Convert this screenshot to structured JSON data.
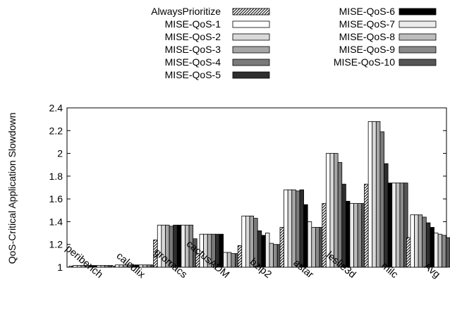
{
  "chart_data": {
    "type": "bar",
    "title": "",
    "xlabel": "",
    "ylabel": "QoS-Critical Application Slowdown",
    "ylim": [
      1,
      2.4
    ],
    "yticks": [
      "1",
      "1.2",
      "1.4",
      "1.6",
      "1.8",
      "2",
      "2.2",
      "2.4"
    ],
    "grid": false,
    "legend_position": "top",
    "categories": [
      "peribench",
      "calculix",
      "gromacs",
      "cactusADM",
      "bzip2",
      "astar",
      "leslie3d",
      "milc",
      "Avg"
    ],
    "series": [
      {
        "name": "AlwaysPrioritize",
        "pattern": "hatch",
        "color": "#ffffff",
        "values": [
          1.01,
          1.01,
          1.24,
          1.12,
          1.19,
          1.35,
          1.56,
          1.73,
          1.26
        ]
      },
      {
        "name": "MISE-QoS-1",
        "color": "#ffffff",
        "values": [
          1.015,
          1.02,
          1.37,
          1.29,
          1.45,
          1.68,
          2.0,
          2.28,
          1.46
        ]
      },
      {
        "name": "MISE-QoS-2",
        "color": "#d9d9d9",
        "values": [
          1.015,
          1.02,
          1.37,
          1.29,
          1.45,
          1.68,
          2.0,
          2.28,
          1.46
        ]
      },
      {
        "name": "MISE-QoS-3",
        "color": "#a6a6a6",
        "values": [
          1.015,
          1.02,
          1.37,
          1.29,
          1.45,
          1.68,
          2.0,
          2.28,
          1.46
        ]
      },
      {
        "name": "MISE-QoS-4",
        "color": "#7a7a7a",
        "values": [
          1.015,
          1.02,
          1.36,
          1.29,
          1.43,
          1.67,
          1.92,
          2.19,
          1.44
        ]
      },
      {
        "name": "MISE-QoS-5",
        "color": "#2e2e2e",
        "values": [
          1.015,
          1.02,
          1.37,
          1.29,
          1.32,
          1.68,
          1.73,
          1.91,
          1.39
        ]
      },
      {
        "name": "MISE-QoS-6",
        "color": "#000000",
        "values": [
          1.015,
          1.02,
          1.37,
          1.29,
          1.28,
          1.55,
          1.58,
          1.74,
          1.35
        ]
      },
      {
        "name": "MISE-QoS-7",
        "color": "#ececec",
        "values": [
          1.015,
          1.02,
          1.37,
          1.13,
          1.3,
          1.4,
          1.56,
          1.74,
          1.3
        ]
      },
      {
        "name": "MISE-QoS-8",
        "color": "#bdbdbd",
        "values": [
          1.015,
          1.02,
          1.37,
          1.13,
          1.21,
          1.35,
          1.56,
          1.74,
          1.29
        ]
      },
      {
        "name": "MISE-QoS-9",
        "color": "#8a8a8a",
        "values": [
          1.015,
          1.02,
          1.37,
          1.12,
          1.2,
          1.35,
          1.56,
          1.74,
          1.28
        ]
      },
      {
        "name": "MISE-QoS-10",
        "color": "#555555",
        "values": [
          1.015,
          1.02,
          1.25,
          1.12,
          1.2,
          1.35,
          1.56,
          1.74,
          1.26
        ]
      }
    ]
  }
}
